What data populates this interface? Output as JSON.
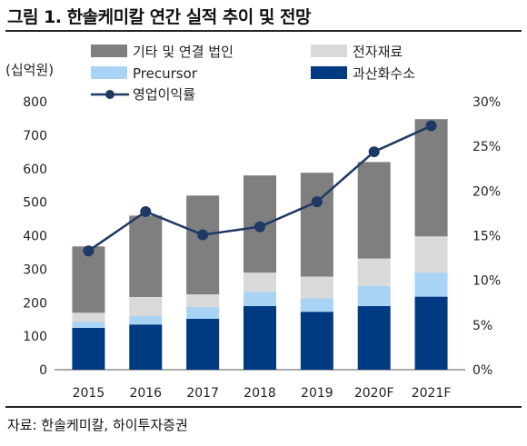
{
  "figure": {
    "title": "그림 1. 한솔케미칼 연간 실적 추이 및 전망",
    "source": "자료: 한솔케미칼, 하이투자증권"
  },
  "chart_data": {
    "type": "bar",
    "stacked": true,
    "categories": [
      "2015",
      "2016",
      "2017",
      "2018",
      "2019",
      "2020F",
      "2021F"
    ],
    "ylabel": "(십억원)",
    "ylim": [
      0,
      800
    ],
    "yticks": [
      0,
      100,
      200,
      300,
      400,
      500,
      600,
      700,
      800
    ],
    "y2lim": [
      0,
      30
    ],
    "y2ticks": [
      "0%",
      "5%",
      "10%",
      "15%",
      "20%",
      "25%",
      "30%"
    ],
    "y2ticks_values": [
      0,
      5,
      10,
      15,
      20,
      25,
      30
    ],
    "legend_position": "top",
    "series": [
      {
        "name": "과산화수소",
        "color": "#003a80",
        "values": [
          125,
          135,
          152,
          190,
          173,
          190,
          218
        ]
      },
      {
        "name": "Precursor",
        "color": "#a9d3f5",
        "values": [
          18,
          25,
          35,
          42,
          40,
          60,
          72
        ]
      },
      {
        "name": "전자재료",
        "color": "#d9d9d9",
        "values": [
          27,
          57,
          38,
          58,
          65,
          82,
          108
        ]
      },
      {
        "name": "기타 및 연결 법인",
        "color": "#7f7f7f",
        "values": [
          198,
          243,
          295,
          290,
          310,
          288,
          350
        ]
      }
    ],
    "line": {
      "name": "영업이익률",
      "color": "#1f3864",
      "axis": "right",
      "values": [
        13.3,
        17.7,
        15.1,
        16.0,
        18.8,
        24.4,
        27.3
      ]
    }
  }
}
